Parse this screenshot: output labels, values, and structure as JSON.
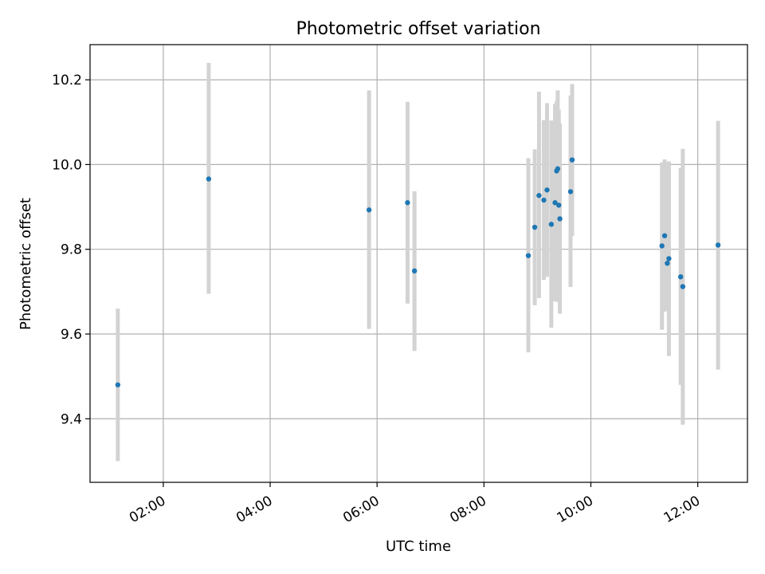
{
  "chart_data": {
    "type": "scatter",
    "title": "Photometric offset variation",
    "xlabel": "UTC time",
    "ylabel": "Photometric offset",
    "x_unit": "hours UTC",
    "xlim": [
      0.63,
      12.93
    ],
    "ylim": [
      9.25,
      10.283
    ],
    "x_ticks": [
      2,
      4,
      6,
      8,
      10,
      12
    ],
    "x_tick_labels": [
      "02:00",
      "04:00",
      "06:00",
      "08:00",
      "10:00",
      "12:00"
    ],
    "y_ticks": [
      9.4,
      9.6,
      9.8,
      10.0,
      10.2
    ],
    "y_tick_labels": [
      "9.4",
      "9.6",
      "9.8",
      "10.0",
      "10.2"
    ],
    "grid": true,
    "marker_color": "#1f77b4",
    "errorbar_color": "#d3d3d3",
    "series": [
      {
        "points": [
          {
            "x": 1.15,
            "y": 9.48,
            "yerr": [
              9.3,
              9.66
            ]
          },
          {
            "x": 2.85,
            "y": 9.966,
            "yerr": [
              9.695,
              10.24
            ]
          },
          {
            "x": 5.85,
            "y": 9.893,
            "yerr": [
              9.612,
              10.175
            ]
          },
          {
            "x": 6.57,
            "y": 9.91,
            "yerr": [
              9.672,
              10.148
            ]
          },
          {
            "x": 6.7,
            "y": 9.749,
            "yerr": [
              9.56,
              9.937
            ]
          },
          {
            "x": 8.83,
            "y": 9.785,
            "yerr": [
              9.557,
              10.015
            ]
          },
          {
            "x": 8.95,
            "y": 9.852,
            "yerr": [
              9.668,
              10.036
            ]
          },
          {
            "x": 9.03,
            "y": 9.927,
            "yerr": [
              9.685,
              10.172
            ]
          },
          {
            "x": 9.12,
            "y": 9.916,
            "yerr": [
              9.728,
              10.105
            ]
          },
          {
            "x": 9.18,
            "y": 9.94,
            "yerr": [
              9.735,
              10.145
            ]
          },
          {
            "x": 9.26,
            "y": 9.859,
            "yerr": [
              9.615,
              10.104
            ]
          },
          {
            "x": 9.33,
            "y": 9.91,
            "yerr": [
              9.677,
              10.143
            ]
          },
          {
            "x": 9.36,
            "y": 9.985,
            "yerr": [
              9.75,
              10.15
            ]
          },
          {
            "x": 9.38,
            "y": 9.99,
            "yerr": [
              9.81,
              10.175
            ]
          },
          {
            "x": 9.4,
            "y": 9.904,
            "yerr": [
              9.675,
              10.13
            ]
          },
          {
            "x": 9.42,
            "y": 9.872,
            "yerr": [
              9.648,
              10.097
            ]
          },
          {
            "x": 9.62,
            "y": 9.936,
            "yerr": [
              9.711,
              10.163
            ]
          },
          {
            "x": 9.65,
            "y": 10.011,
            "yerr": [
              9.832,
              10.19
            ]
          },
          {
            "x": 11.33,
            "y": 9.808,
            "yerr": [
              9.61,
              10.005
            ]
          },
          {
            "x": 11.38,
            "y": 9.832,
            "yerr": [
              9.653,
              10.012
            ]
          },
          {
            "x": 11.43,
            "y": 9.767,
            "yerr": [
              9.658,
              10.005
            ]
          },
          {
            "x": 11.46,
            "y": 9.778,
            "yerr": [
              9.548,
              10.007
            ]
          },
          {
            "x": 11.68,
            "y": 9.735,
            "yerr": [
              9.48,
              9.992
            ]
          },
          {
            "x": 11.72,
            "y": 9.712,
            "yerr": [
              9.386,
              10.037
            ]
          },
          {
            "x": 12.38,
            "y": 9.81,
            "yerr": [
              9.516,
              10.103
            ]
          }
        ]
      }
    ]
  }
}
